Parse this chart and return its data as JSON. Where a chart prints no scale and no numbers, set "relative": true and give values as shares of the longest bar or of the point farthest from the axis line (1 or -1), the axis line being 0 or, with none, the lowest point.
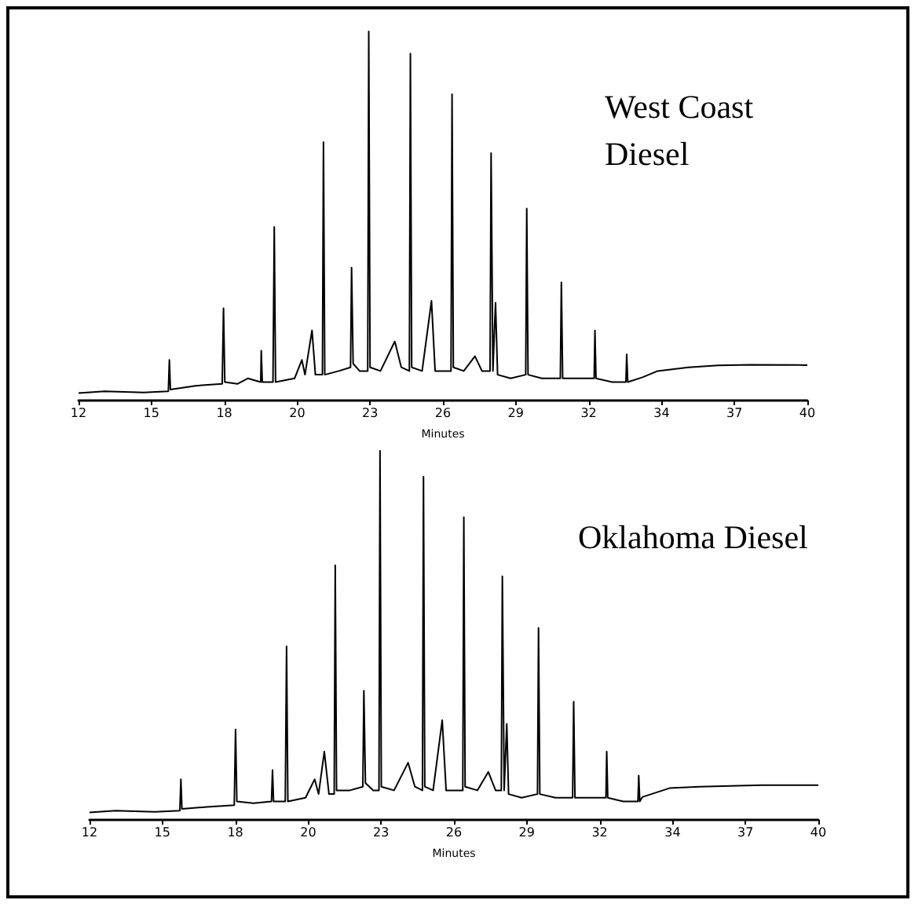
{
  "chart_data": [
    {
      "type": "line",
      "title": "West Coast Diesel",
      "xlabel": "Minutes",
      "relative": true,
      "xlim": [
        12,
        40
      ],
      "xticks": [
        12,
        {
          "value": 14.8,
          "label": "15"
        },
        {
          "value": 17.6,
          "label": "18"
        },
        {
          "value": 20.4,
          "label": "20"
        },
        {
          "value": 23.2,
          "label": "23"
        },
        26,
        {
          "value": 28.8,
          "label": "29"
        },
        {
          "value": 31.6,
          "label": "32"
        },
        {
          "value": 34.4,
          "label": "34"
        },
        {
          "value": 37.2,
          "label": "37"
        },
        40
      ],
      "series": [
        {
          "color": "#000000",
          "x": [
            12,
            13,
            14.5,
            15.45,
            15.49,
            15.53,
            16.5,
            17.52,
            17.57,
            17.62,
            18.1,
            18.5,
            19,
            19.02,
            19.06,
            19.47,
            19.52,
            19.57,
            20.3,
            20.58,
            20.7,
            20.97,
            21.1,
            21.37,
            21.41,
            21.46,
            22,
            22.45,
            22.49,
            22.55,
            22.8,
            23.11,
            23.15,
            23.2,
            23.6,
            24.15,
            24.4,
            24.71,
            24.75,
            24.8,
            25.2,
            25.56,
            25.7,
            26.31,
            26.35,
            26.4,
            26.8,
            27.23,
            27.5,
            27.81,
            27.85,
            27.92,
            28.02,
            28.1,
            28.6,
            29.18,
            29.22,
            29.27,
            29.8,
            30.51,
            30.55,
            30.6,
            31.2,
            31.81,
            31.84,
            31.88,
            32.5,
            33.03,
            33.06,
            33.1,
            33.67,
            34.25,
            35.43,
            36.57,
            37.82,
            40
          ],
          "values": [
            0.02,
            0.025,
            0.022,
            0.025,
            0.11,
            0.03,
            0.04,
            0.045,
            0.25,
            0.05,
            0.045,
            0.06,
            0.05,
            0.135,
            0.05,
            0.05,
            0.47,
            0.05,
            0.06,
            0.11,
            0.07,
            0.19,
            0.07,
            0.07,
            0.7,
            0.07,
            0.08,
            0.09,
            0.36,
            0.1,
            0.08,
            0.08,
            1,
            0.09,
            0.08,
            0.16,
            0.09,
            0.08,
            0.94,
            0.09,
            0.08,
            0.27,
            0.08,
            0.08,
            0.83,
            0.09,
            0.08,
            0.12,
            0.08,
            0.08,
            0.67,
            0.08,
            0.265,
            0.07,
            0.06,
            0.07,
            0.52,
            0.07,
            0.06,
            0.06,
            0.32,
            0.06,
            0.06,
            0.06,
            0.19,
            0.06,
            0.05,
            0.05,
            0.125,
            0.05,
            0.063,
            0.08,
            0.09,
            0.095,
            0.097,
            0.096
          ]
        }
      ]
    },
    {
      "type": "line",
      "title": "Oklahoma Diesel",
      "xlabel": "Minutes",
      "relative": true,
      "xlim": [
        12,
        40
      ],
      "xticks": [
        12,
        {
          "value": 14.8,
          "label": "15"
        },
        {
          "value": 17.6,
          "label": "18"
        },
        {
          "value": 20.4,
          "label": "20"
        },
        {
          "value": 23.2,
          "label": "23"
        },
        26,
        {
          "value": 28.8,
          "label": "29"
        },
        {
          "value": 31.6,
          "label": "32"
        },
        {
          "value": 34.4,
          "label": "34"
        },
        {
          "value": 37.2,
          "label": "37"
        },
        40
      ],
      "series": [
        {
          "color": "#000000",
          "x": [
            12,
            13,
            14.5,
            15.47,
            15.51,
            15.55,
            16.5,
            17.56,
            17.61,
            17.66,
            18.3,
            18.99,
            19.03,
            19.07,
            19.52,
            19.57,
            19.62,
            20.3,
            20.65,
            20.8,
            21.02,
            21.2,
            21.4,
            21.44,
            21.49,
            22,
            22.5,
            22.54,
            22.6,
            22.9,
            23.12,
            23.16,
            23.21,
            23.7,
            24.24,
            24.5,
            24.79,
            24.83,
            24.88,
            25.2,
            25.55,
            25.7,
            26.34,
            26.38,
            26.43,
            26.9,
            27.32,
            27.6,
            27.82,
            27.86,
            27.93,
            28.03,
            28.1,
            28.6,
            29.21,
            29.25,
            29.3,
            29.9,
            30.56,
            30.6,
            30.65,
            31.3,
            31.84,
            31.87,
            31.91,
            32.5,
            33.07,
            33.1,
            33.14,
            33.24,
            34.28,
            35.43,
            37.82,
            40
          ],
          "values": [
            0.02,
            0.025,
            0.022,
            0.025,
            0.11,
            0.03,
            0.035,
            0.04,
            0.245,
            0.05,
            0.045,
            0.05,
            0.135,
            0.05,
            0.05,
            0.47,
            0.05,
            0.06,
            0.11,
            0.07,
            0.185,
            0.07,
            0.07,
            0.69,
            0.08,
            0.08,
            0.09,
            0.35,
            0.1,
            0.08,
            0.08,
            1,
            0.09,
            0.08,
            0.155,
            0.09,
            0.08,
            0.93,
            0.09,
            0.08,
            0.27,
            0.08,
            0.08,
            0.82,
            0.09,
            0.08,
            0.13,
            0.08,
            0.08,
            0.66,
            0.08,
            0.26,
            0.07,
            0.06,
            0.07,
            0.52,
            0.07,
            0.06,
            0.06,
            0.32,
            0.06,
            0.06,
            0.06,
            0.185,
            0.06,
            0.05,
            0.05,
            0.12,
            0.05,
            0.062,
            0.086,
            0.09,
            0.094,
            0.094
          ]
        }
      ]
    }
  ]
}
